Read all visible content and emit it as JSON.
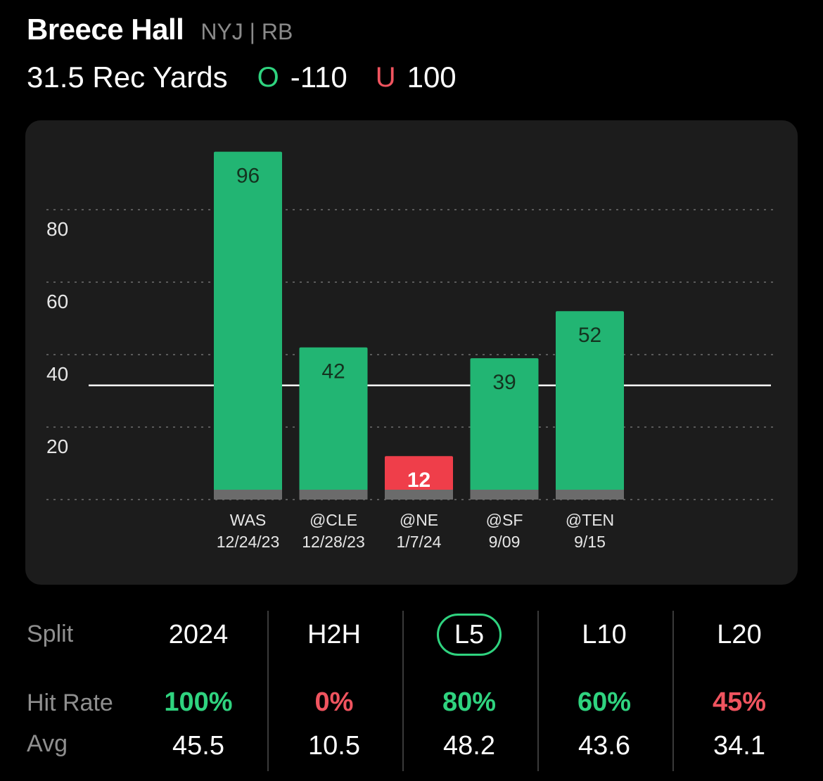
{
  "header": {
    "player_name": "Breece Hall",
    "player_meta": "NYJ | RB",
    "prop_line": "31.5 Rec Yards",
    "over_marker": "O",
    "over_odds": "-110",
    "under_marker": "U",
    "under_odds": "100"
  },
  "colors": {
    "hit": "#22b573",
    "miss": "#ef3e4a",
    "hit_text": "#2fd37f",
    "miss_text": "#f0545f",
    "panel": "#1c1c1c",
    "bar_base": "#6b6b6b"
  },
  "chart_data": {
    "type": "bar",
    "categories": [
      "WAS",
      "@CLE",
      "@NE",
      "@SF",
      "@TEN"
    ],
    "dates": [
      "12/24/23",
      "12/28/23",
      "1/7/24",
      "9/09",
      "9/15"
    ],
    "values": [
      96,
      42,
      12,
      39,
      52
    ],
    "reference_line": 31.5,
    "y_ticks": [
      20,
      40,
      60,
      80
    ],
    "ylim": [
      0,
      100
    ],
    "grid": true,
    "title": "",
    "xlabel": "",
    "ylabel": ""
  },
  "splits": {
    "row_labels": {
      "split": "Split",
      "hit_rate": "Hit Rate",
      "avg": "Avg"
    },
    "columns": [
      {
        "label": "2024",
        "hit_rate": "100%",
        "avg": "45.5",
        "hit_good": true,
        "selected": false
      },
      {
        "label": "H2H",
        "hit_rate": "0%",
        "avg": "10.5",
        "hit_good": false,
        "selected": false
      },
      {
        "label": "L5",
        "hit_rate": "80%",
        "avg": "48.2",
        "hit_good": true,
        "selected": true
      },
      {
        "label": "L10",
        "hit_rate": "60%",
        "avg": "43.6",
        "hit_good": true,
        "selected": false
      },
      {
        "label": "L20",
        "hit_rate": "45%",
        "avg": "34.1",
        "hit_good": false,
        "selected": false
      }
    ]
  }
}
